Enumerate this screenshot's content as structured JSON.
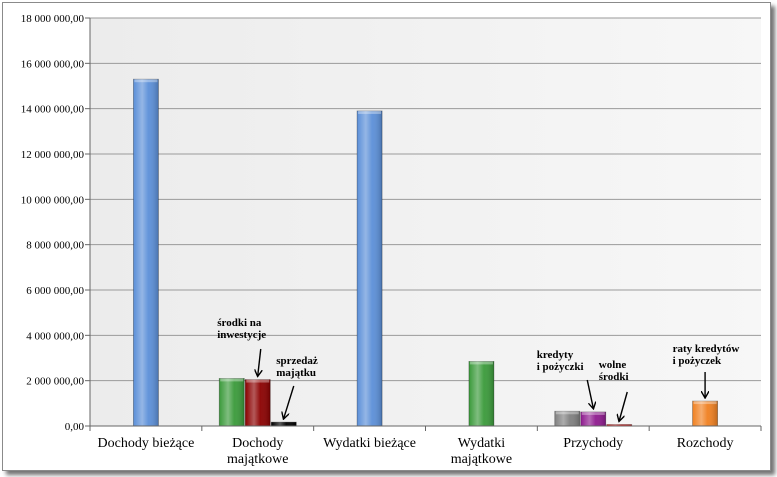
{
  "chart_data": {
    "type": "bar",
    "title": "",
    "xlabel": "",
    "ylabel": "",
    "ylim": [
      0,
      18000000
    ],
    "ytick_step": 2000000,
    "yticks": [
      "0,00",
      "2 000 000,00",
      "4 000 000,00",
      "6 000 000,00",
      "8 000 000,00",
      "10 000 000,00",
      "12 000 000,00",
      "14 000 000,00",
      "16 000 000,00",
      "18 000 000,00"
    ],
    "grid": true,
    "legend": "none",
    "categories": [
      {
        "lines": [
          "Dochody bieżące"
        ]
      },
      {
        "lines": [
          "Dochody",
          "majątkowe"
        ]
      },
      {
        "lines": [
          "Wydatki bieżące"
        ]
      },
      {
        "lines": [
          "Wydatki",
          "majątkowe"
        ]
      },
      {
        "lines": [
          "Przychody"
        ]
      },
      {
        "lines": [
          "Rozchody"
        ]
      }
    ],
    "bars": [
      {
        "category": 0,
        "value": 15300000,
        "color": "#5b8fd8",
        "annotation": null
      },
      {
        "category": 1,
        "value": 2100000,
        "color": "#3a9a3a",
        "annotation": null
      },
      {
        "category": 1,
        "value": 2050000,
        "color": "#8b0000",
        "annotation": [
          "środki na",
          "inwestycje"
        ]
      },
      {
        "category": 1,
        "value": 170000,
        "color": "#000000",
        "annotation": [
          "sprzedaż",
          "majątku"
        ]
      },
      {
        "category": 2,
        "value": 13900000,
        "color": "#5b8fd8",
        "annotation": null
      },
      {
        "category": 3,
        "value": 2850000,
        "color": "#3a9a3a",
        "annotation": null
      },
      {
        "category": 4,
        "value": 650000,
        "color": "#808080",
        "annotation": null
      },
      {
        "category": 4,
        "value": 620000,
        "color": "#8e1a8e",
        "annotation": [
          "kredyty",
          "i pożyczki"
        ]
      },
      {
        "category": 4,
        "value": 40000,
        "color": "#e02020",
        "annotation": [
          "wolne",
          "środki"
        ]
      },
      {
        "category": 5,
        "value": 1100000,
        "color": "#f08020",
        "annotation": [
          "raty kredytów",
          "i pożyczek"
        ]
      }
    ]
  }
}
